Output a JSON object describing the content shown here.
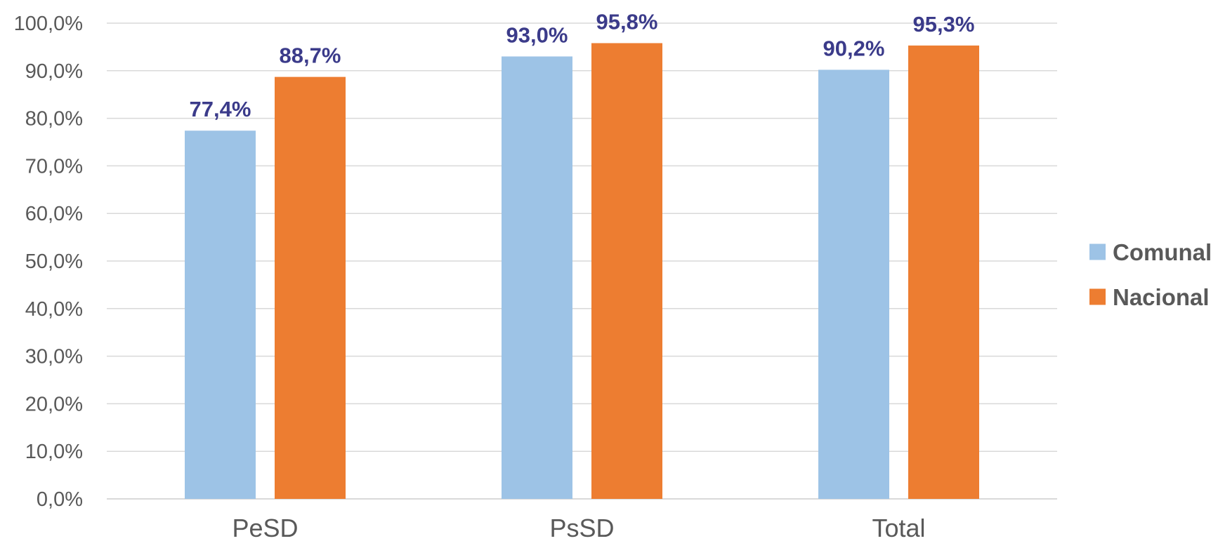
{
  "chart_data": {
    "type": "bar",
    "categories": [
      "PeSD",
      "PsSD",
      "Total"
    ],
    "series": [
      {
        "name": "Comunal",
        "values": [
          77.4,
          93.0,
          90.2
        ],
        "labels": [
          "77,4%",
          "93,0%",
          "90,2%"
        ],
        "color": "#9dc3e6"
      },
      {
        "name": "Nacional",
        "values": [
          88.7,
          95.8,
          95.3
        ],
        "labels": [
          "88,7%",
          "95,8%",
          "95,3%"
        ],
        "color": "#ed7d31"
      }
    ],
    "ylim": [
      0,
      100
    ],
    "yticks": [
      0,
      10,
      20,
      30,
      40,
      50,
      60,
      70,
      80,
      90,
      100
    ],
    "ytick_labels": [
      "0,0%",
      "10,0%",
      "20,0%",
      "30,0%",
      "40,0%",
      "50,0%",
      "60,0%",
      "70,0%",
      "80,0%",
      "90,0%",
      "100,0%"
    ],
    "title": "",
    "xlabel": "",
    "ylabel": "",
    "grid": true,
    "legend_position": "right",
    "data_label_color": "#3b3b8a"
  }
}
